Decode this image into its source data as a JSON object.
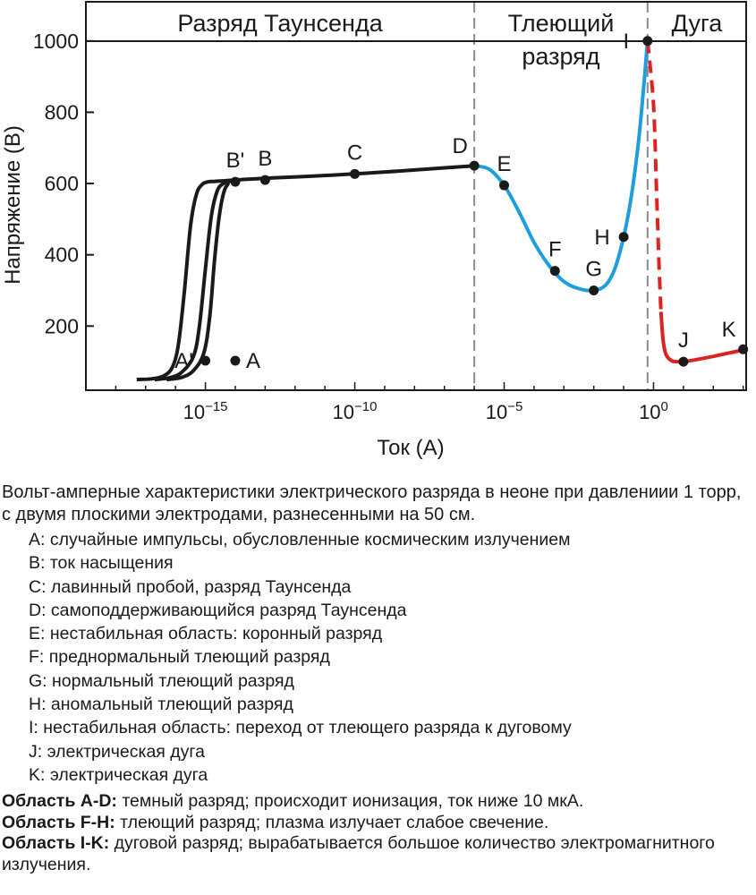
{
  "chart_data": {
    "type": "line",
    "xlabel": "Ток (А)",
    "ylabel": "Напряжение (В)",
    "x_scale": "log",
    "x_log10_range": [
      -19,
      3.1
    ],
    "ylim": [
      20,
      1110
    ],
    "x_ticks": [
      {
        "exp": -15,
        "base": "10",
        "sup": "−15"
      },
      {
        "exp": -10,
        "base": "10",
        "sup": "−10"
      },
      {
        "exp": -5,
        "base": "10",
        "sup": "−5"
      },
      {
        "exp": 0,
        "base": "10",
        "sup": "0"
      }
    ],
    "y_ticks": [
      200,
      400,
      600,
      800,
      1000
    ],
    "regions": [
      {
        "label": "Разряд Таунсенда",
        "x_log10_start": -19,
        "x_log10_end": -6
      },
      {
        "label": "Тлеющий",
        "label2": "разряд",
        "x_log10_start": -6,
        "x_log10_end": -0.2
      },
      {
        "label": "Дуга",
        "x_log10_start": -0.2,
        "x_log10_end": 3.1
      }
    ],
    "boundaries_x_log10": [
      -6,
      -0.2
    ],
    "series": [
      {
        "color": "#1a1a1a",
        "style": "solid",
        "x_log10": [
          -17.3,
          -16.8,
          -16.4,
          -16.1,
          -15.9,
          -15.7,
          -15.5,
          -15.3,
          -15.1,
          -14.9,
          -14.7,
          -14.5,
          -14.0
        ],
        "y": [
          50,
          52,
          60,
          85,
          150,
          300,
          480,
          570,
          598,
          605,
          606,
          607,
          610
        ]
      },
      {
        "color": "#1a1a1a",
        "style": "solid",
        "x_log10": [
          -16.7,
          -16.2,
          -15.8,
          -15.4,
          -15.2,
          -15.0,
          -14.8,
          -14.6,
          -14.4,
          -14.2,
          -14.0
        ],
        "y": [
          50,
          55,
          70,
          115,
          200,
          360,
          510,
          580,
          600,
          606,
          609
        ]
      },
      {
        "color": "#1a1a1a",
        "style": "solid",
        "x_log10": [
          -16.3,
          -15.8,
          -15.4,
          -15.05,
          -14.85,
          -14.7,
          -14.55,
          -14.4,
          -14.25,
          -14.0,
          -10.0,
          -6.0
        ],
        "y": [
          50,
          56,
          75,
          125,
          230,
          380,
          500,
          570,
          598,
          610,
          627,
          650
        ]
      },
      {
        "color": "#1e9fdd",
        "style": "solid",
        "x_log10": [
          -6.0,
          -5.5,
          -5.0,
          -4.5,
          -4.0,
          -3.5,
          -3.0,
          -2.5,
          -2.0,
          -1.6,
          -1.3,
          -1.0,
          -0.75,
          -0.5,
          -0.3,
          -0.2
        ],
        "y": [
          650,
          640,
          595,
          520,
          435,
          370,
          325,
          305,
          300,
          315,
          360,
          450,
          560,
          720,
          900,
          1000
        ]
      },
      {
        "color": "#dd2222",
        "style": "dashed",
        "x_log10": [
          -0.2,
          0.0,
          0.1,
          0.18,
          0.25
        ],
        "y": [
          1000,
          820,
          580,
          380,
          240
        ]
      },
      {
        "color": "#dd2222",
        "style": "solid",
        "x_log10": [
          0.25,
          0.32,
          0.42,
          0.6,
          0.8,
          1.0,
          1.5,
          2.0,
          2.5,
          3.0
        ],
        "y": [
          240,
          160,
          120,
          103,
          100,
          100,
          107,
          115,
          124,
          133
        ]
      }
    ],
    "points": [
      {
        "label": "A'",
        "x_log10": -15.0,
        "y": 103,
        "label_pos": "left"
      },
      {
        "label": "A",
        "x_log10": -14.0,
        "y": 103,
        "label_pos": "right"
      },
      {
        "label": "B'",
        "x_log10": -14.0,
        "y": 605,
        "label_pos": "above"
      },
      {
        "label": "B",
        "x_log10": -13.0,
        "y": 610,
        "label_pos": "above"
      },
      {
        "label": "C",
        "x_log10": -10.0,
        "y": 627,
        "label_pos": "above"
      },
      {
        "label": "D",
        "x_log10": -6.0,
        "y": 650,
        "label_pos": "above-left"
      },
      {
        "label": "E",
        "x_log10": -5.0,
        "y": 595,
        "label_pos": "above"
      },
      {
        "label": "F",
        "x_log10": -3.3,
        "y": 355,
        "label_pos": "above"
      },
      {
        "label": "G",
        "x_log10": -2.0,
        "y": 300,
        "label_pos": "above"
      },
      {
        "label": "H",
        "x_log10": -1.0,
        "y": 450,
        "label_pos": "left"
      },
      {
        "label": "I",
        "x_log10": -0.2,
        "y": 1000,
        "label_pos": "left"
      },
      {
        "label": "J",
        "x_log10": 1.0,
        "y": 100,
        "label_pos": "above"
      },
      {
        "label": "K",
        "x_log10": 3.0,
        "y": 135,
        "label_pos": "above-left"
      }
    ]
  },
  "caption": {
    "intro": "Вольт-амперные характеристики электрического разряда в неоне при давлениии 1 торр, с двумя плоскими электродами, разнесенными на 50 см.",
    "items": [
      "A: случайные импульсы, обусловленные космическим излучением",
      "B: ток насыщения",
      "C: лавинный пробой, разряд Таунсенда",
      "D: самоподдерживающийся разряд Таунсенда",
      "E: нестабильная область: коронный разряд",
      "F: преднормальный тлеющий разряд",
      "G: нормальный тлеющий разряд",
      "H: аномальный тлеющий разряд",
      "I: нестабильная область: переход от тлеющего разряда к дуговому",
      "J: электрическая дуга",
      "K: электрическая дуга"
    ],
    "regions": [
      {
        "term": "Область A-D:",
        "text": " темный разряд; происходит ионизация, ток ниже 10 мкА."
      },
      {
        "term": "Область F-H:",
        "text": " тлеющий разряд; плазма излучает слабое свечение."
      },
      {
        "term": "Область I-K:",
        "text": " дуговой разряд; вырабатывается большое количество электромагнитного излучения."
      }
    ]
  }
}
